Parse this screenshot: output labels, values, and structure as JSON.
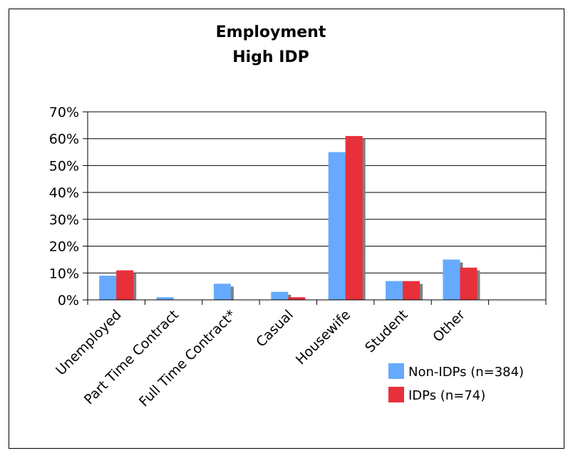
{
  "chart_data": {
    "type": "bar",
    "title": [
      "Employment",
      "High IDP"
    ],
    "categories": [
      "Unemployed",
      "Part Time Contract",
      "Full Time Contract*",
      "Casual",
      "Housewife",
      "Student",
      "Other",
      ""
    ],
    "series": [
      {
        "name": "Non-IDPs (n=384)",
        "color": "#66AAFF",
        "values": [
          9,
          1,
          6,
          3,
          55,
          7,
          15,
          null
        ]
      },
      {
        "name": "IDPs (n=74)",
        "color": "#E8303A",
        "values": [
          11,
          0,
          0,
          1,
          61,
          7,
          12,
          null
        ]
      }
    ],
    "ylim": [
      0,
      70
    ],
    "yticks": [
      "0%",
      "10%",
      "20%",
      "30%",
      "40%",
      "50%",
      "60%",
      "70%"
    ],
    "ytick_values": [
      0,
      10,
      20,
      30,
      40,
      50,
      60,
      70
    ],
    "xlabel": "",
    "ylabel": "",
    "grid": true,
    "legend_position": "bottom-right"
  }
}
